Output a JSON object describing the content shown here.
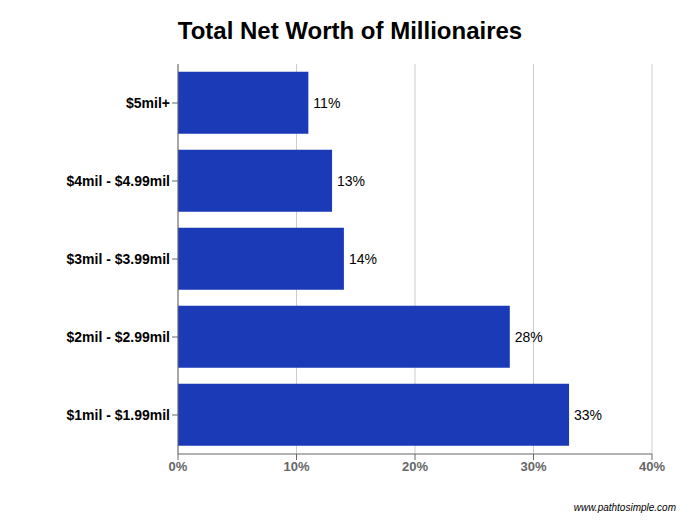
{
  "chart_data": {
    "type": "bar",
    "orientation": "horizontal",
    "title": "Total Net Worth of Millionaires",
    "categories": [
      "$1mil - $1.99mil",
      "$2mil - $2.99mil",
      "$3mil - $3.99mil",
      "$4mil - $4.99mil",
      "$5mil+"
    ],
    "values": [
      33,
      28,
      14,
      13,
      11
    ],
    "value_labels": [
      "33%",
      "28%",
      "14%",
      "13%",
      "11%"
    ],
    "data_labels": true,
    "color": "#1a3ab8",
    "xlim": [
      0,
      40
    ],
    "xticks": [
      {
        "value": 0,
        "label": "0%"
      },
      {
        "value": 10,
        "label": "10%"
      },
      {
        "value": 20,
        "label": "20%"
      },
      {
        "value": 30,
        "label": "30%"
      },
      {
        "value": 40,
        "label": "40%"
      }
    ],
    "grid": true,
    "annotations": [
      "www.pathtosimple.com"
    ]
  }
}
